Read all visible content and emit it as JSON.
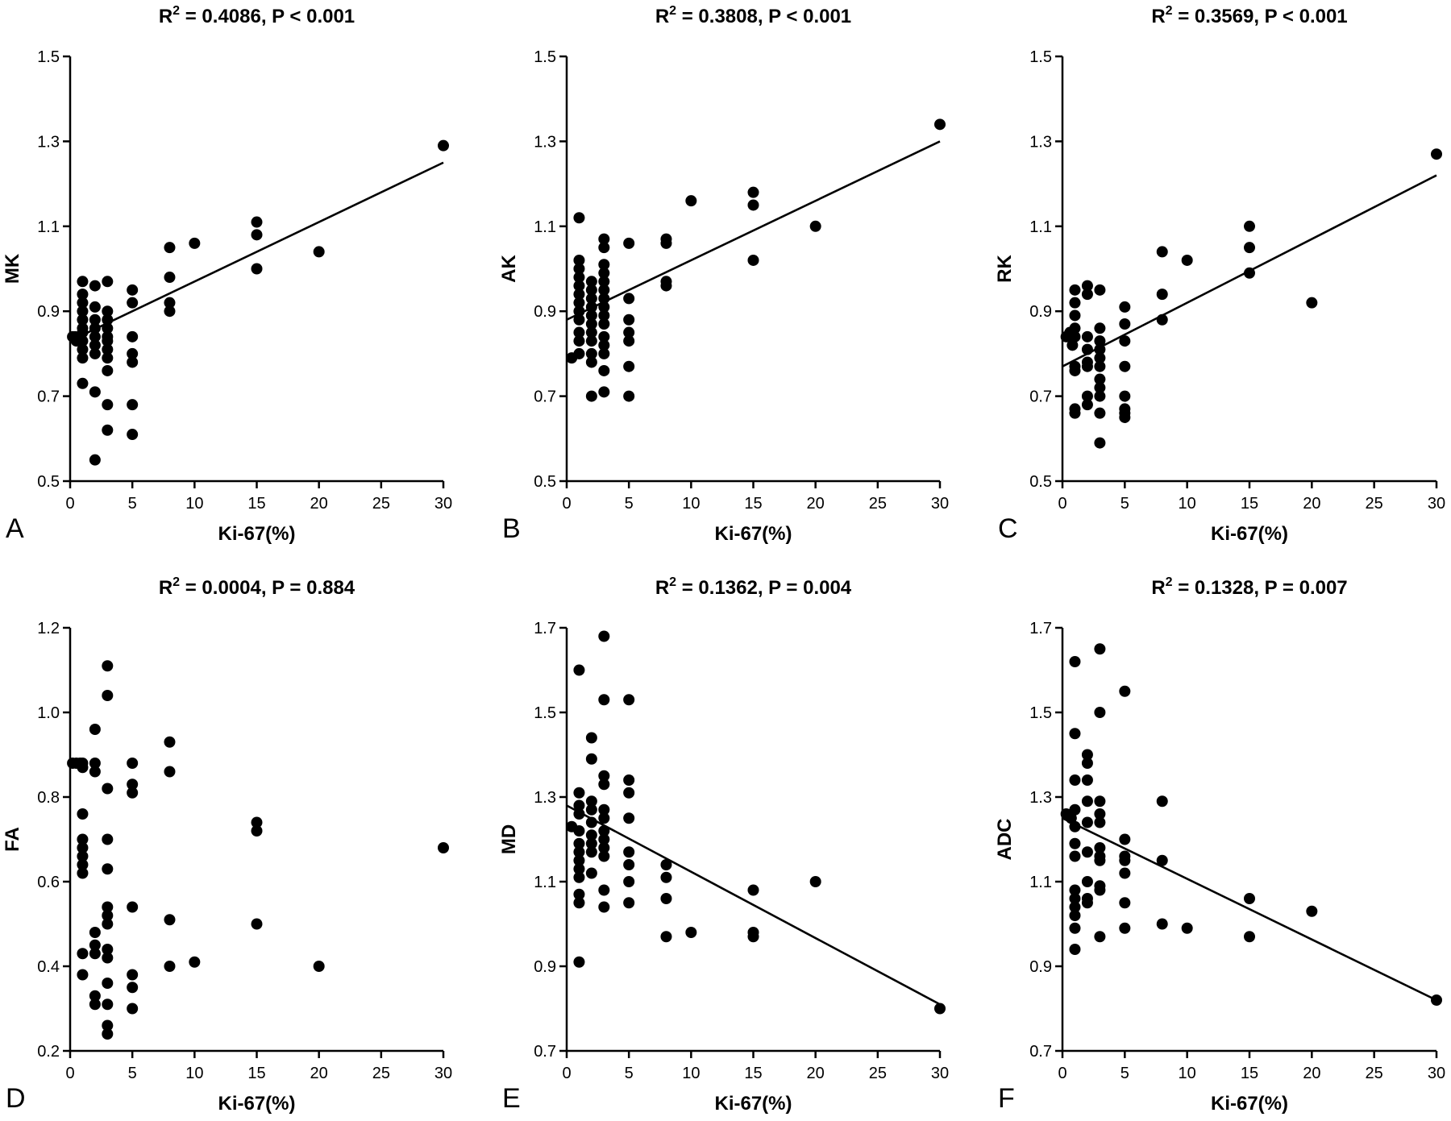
{
  "chart_data": [
    {
      "id": "A",
      "type": "scatter",
      "panel_label": "A",
      "title_pre": "R",
      "title_sup": "2",
      "title_post": " = 0.4086, P < 0.001",
      "xlabel": "Ki-67(%)",
      "ylabel": "MK",
      "xlim": [
        0,
        30
      ],
      "ylim": [
        0.5,
        1.5
      ],
      "xticks": [
        0,
        5,
        10,
        15,
        20,
        25,
        30
      ],
      "yticks": [
        0.5,
        0.7,
        0.9,
        1.1,
        1.3,
        1.5
      ],
      "ytick_labels": [
        "0.5",
        "0.7",
        "0.9",
        "1.1",
        "1.3",
        "1.5"
      ],
      "fit": [
        [
          0,
          0.83
        ],
        [
          30,
          1.25
        ]
      ],
      "points": [
        [
          0.2,
          0.84
        ],
        [
          0.4,
          0.84
        ],
        [
          0.5,
          0.83
        ],
        [
          0.8,
          0.84
        ],
        [
          1,
          0.97
        ],
        [
          1,
          0.94
        ],
        [
          1,
          0.92
        ],
        [
          1,
          0.9
        ],
        [
          1,
          0.88
        ],
        [
          1,
          0.86
        ],
        [
          1,
          0.85
        ],
        [
          1,
          0.83
        ],
        [
          1,
          0.81
        ],
        [
          1,
          0.79
        ],
        [
          1,
          0.73
        ],
        [
          2,
          0.96
        ],
        [
          2,
          0.91
        ],
        [
          2,
          0.88
        ],
        [
          2,
          0.86
        ],
        [
          2,
          0.84
        ],
        [
          2,
          0.82
        ],
        [
          2,
          0.8
        ],
        [
          2,
          0.71
        ],
        [
          2,
          0.55
        ],
        [
          3,
          0.97
        ],
        [
          3,
          0.9
        ],
        [
          3,
          0.88
        ],
        [
          3,
          0.86
        ],
        [
          3,
          0.84
        ],
        [
          3,
          0.83
        ],
        [
          3,
          0.81
        ],
        [
          3,
          0.79
        ],
        [
          3,
          0.76
        ],
        [
          3,
          0.68
        ],
        [
          3,
          0.62
        ],
        [
          5,
          0.95
        ],
        [
          5,
          0.92
        ],
        [
          5,
          0.84
        ],
        [
          5,
          0.8
        ],
        [
          5,
          0.78
        ],
        [
          5,
          0.68
        ],
        [
          5,
          0.61
        ],
        [
          8,
          1.05
        ],
        [
          8,
          0.98
        ],
        [
          8,
          0.92
        ],
        [
          8,
          0.9
        ],
        [
          10,
          1.06
        ],
        [
          15,
          1.11
        ],
        [
          15,
          1.08
        ],
        [
          15,
          1.0
        ],
        [
          20,
          1.04
        ],
        [
          30,
          1.29
        ]
      ]
    },
    {
      "id": "B",
      "type": "scatter",
      "panel_label": "B",
      "title_pre": "R",
      "title_sup": "2",
      "title_post": " = 0.3808, P < 0.001",
      "xlabel": "Ki-67(%)",
      "ylabel": "AK",
      "xlim": [
        0,
        30
      ],
      "ylim": [
        0.5,
        1.5
      ],
      "xticks": [
        0,
        5,
        10,
        15,
        20,
        25,
        30
      ],
      "yticks": [
        0.5,
        0.7,
        0.9,
        1.1,
        1.3,
        1.5
      ],
      "ytick_labels": [
        "0.5",
        "0.7",
        "0.9",
        "1.1",
        "1.3",
        "1.5"
      ],
      "fit": [
        [
          0,
          0.88
        ],
        [
          30,
          1.3
        ]
      ],
      "points": [
        [
          0.4,
          0.79
        ],
        [
          1,
          1.12
        ],
        [
          1,
          1.02
        ],
        [
          1,
          1.0
        ],
        [
          1,
          0.98
        ],
        [
          1,
          0.96
        ],
        [
          1,
          0.94
        ],
        [
          1,
          0.92
        ],
        [
          1,
          0.9
        ],
        [
          1,
          0.88
        ],
        [
          1,
          0.85
        ],
        [
          1,
          0.83
        ],
        [
          1,
          0.8
        ],
        [
          2,
          0.97
        ],
        [
          2,
          0.95
        ],
        [
          2,
          0.93
        ],
        [
          2,
          0.91
        ],
        [
          2,
          0.89
        ],
        [
          2,
          0.87
        ],
        [
          2,
          0.85
        ],
        [
          2,
          0.83
        ],
        [
          2,
          0.8
        ],
        [
          2,
          0.78
        ],
        [
          2,
          0.7
        ],
        [
          3,
          1.07
        ],
        [
          3,
          1.05
        ],
        [
          3,
          1.01
        ],
        [
          3,
          0.99
        ],
        [
          3,
          0.97
        ],
        [
          3,
          0.95
        ],
        [
          3,
          0.93
        ],
        [
          3,
          0.91
        ],
        [
          3,
          0.89
        ],
        [
          3,
          0.87
        ],
        [
          3,
          0.84
        ],
        [
          3,
          0.82
        ],
        [
          3,
          0.8
        ],
        [
          3,
          0.76
        ],
        [
          3,
          0.71
        ],
        [
          5,
          1.06
        ],
        [
          5,
          0.93
        ],
        [
          5,
          0.88
        ],
        [
          5,
          0.85
        ],
        [
          5,
          0.83
        ],
        [
          5,
          0.77
        ],
        [
          5,
          0.7
        ],
        [
          8,
          1.07
        ],
        [
          8,
          1.06
        ],
        [
          8,
          0.97
        ],
        [
          8,
          0.96
        ],
        [
          10,
          1.16
        ],
        [
          15,
          1.18
        ],
        [
          15,
          1.15
        ],
        [
          15,
          1.02
        ],
        [
          20,
          1.1
        ],
        [
          30,
          1.34
        ]
      ]
    },
    {
      "id": "C",
      "type": "scatter",
      "panel_label": "C",
      "title_pre": "R",
      "title_sup": "2",
      "title_post": " = 0.3569, P < 0.001",
      "xlabel": "Ki-67(%)",
      "ylabel": "RK",
      "xlim": [
        0,
        30
      ],
      "ylim": [
        0.5,
        1.5
      ],
      "xticks": [
        0,
        5,
        10,
        15,
        20,
        25,
        30
      ],
      "yticks": [
        0.5,
        0.7,
        0.9,
        1.1,
        1.3,
        1.5
      ],
      "ytick_labels": [
        "0.5",
        "0.7",
        "0.9",
        "1.1",
        "1.3",
        "1.5"
      ],
      "fit": [
        [
          0,
          0.77
        ],
        [
          30,
          1.22
        ]
      ],
      "points": [
        [
          0.3,
          0.84
        ],
        [
          0.6,
          0.85
        ],
        [
          0.8,
          0.82
        ],
        [
          1,
          0.95
        ],
        [
          1,
          0.92
        ],
        [
          1,
          0.89
        ],
        [
          1,
          0.86
        ],
        [
          1,
          0.84
        ],
        [
          1,
          0.77
        ],
        [
          1,
          0.76
        ],
        [
          1,
          0.67
        ],
        [
          1,
          0.66
        ],
        [
          2,
          0.96
        ],
        [
          2,
          0.94
        ],
        [
          2,
          0.84
        ],
        [
          2,
          0.81
        ],
        [
          2,
          0.78
        ],
        [
          2,
          0.77
        ],
        [
          2,
          0.7
        ],
        [
          2,
          0.68
        ],
        [
          3,
          0.95
        ],
        [
          3,
          0.86
        ],
        [
          3,
          0.83
        ],
        [
          3,
          0.81
        ],
        [
          3,
          0.79
        ],
        [
          3,
          0.77
        ],
        [
          3,
          0.74
        ],
        [
          3,
          0.72
        ],
        [
          3,
          0.7
        ],
        [
          3,
          0.66
        ],
        [
          3,
          0.59
        ],
        [
          5,
          0.91
        ],
        [
          5,
          0.87
        ],
        [
          5,
          0.83
        ],
        [
          5,
          0.77
        ],
        [
          5,
          0.7
        ],
        [
          5,
          0.67
        ],
        [
          5,
          0.66
        ],
        [
          5,
          0.65
        ],
        [
          8,
          1.04
        ],
        [
          8,
          0.94
        ],
        [
          8,
          0.88
        ],
        [
          10,
          1.02
        ],
        [
          15,
          1.1
        ],
        [
          15,
          1.05
        ],
        [
          15,
          0.99
        ],
        [
          20,
          0.92
        ],
        [
          30,
          1.27
        ]
      ]
    },
    {
      "id": "D",
      "type": "scatter",
      "panel_label": "D",
      "title_pre": "R",
      "title_sup": "2",
      "title_post": " = 0.0004, P = 0.884",
      "xlabel": "Ki-67(%)",
      "ylabel": "FA",
      "xlim": [
        0,
        30
      ],
      "ylim": [
        0.2,
        1.2
      ],
      "xticks": [
        0,
        5,
        10,
        15,
        20,
        25,
        30
      ],
      "yticks": [
        0.2,
        0.4,
        0.6,
        0.8,
        1.0,
        1.2
      ],
      "ytick_labels": [
        "0.2",
        "0.4",
        "0.6",
        "0.8",
        "1.0",
        "1.2"
      ],
      "fit": null,
      "points": [
        [
          0.2,
          0.88
        ],
        [
          0.5,
          0.88
        ],
        [
          0.8,
          0.88
        ],
        [
          1,
          0.88
        ],
        [
          1,
          0.87
        ],
        [
          1,
          0.76
        ],
        [
          1,
          0.7
        ],
        [
          1,
          0.68
        ],
        [
          1,
          0.66
        ],
        [
          1,
          0.64
        ],
        [
          1,
          0.62
        ],
        [
          1,
          0.43
        ],
        [
          1,
          0.38
        ],
        [
          2,
          0.96
        ],
        [
          2,
          0.88
        ],
        [
          2,
          0.86
        ],
        [
          2,
          0.48
        ],
        [
          2,
          0.45
        ],
        [
          2,
          0.43
        ],
        [
          2,
          0.33
        ],
        [
          2,
          0.31
        ],
        [
          3,
          1.11
        ],
        [
          3,
          1.04
        ],
        [
          3,
          0.82
        ],
        [
          3,
          0.7
        ],
        [
          3,
          0.63
        ],
        [
          3,
          0.54
        ],
        [
          3,
          0.52
        ],
        [
          3,
          0.5
        ],
        [
          3,
          0.44
        ],
        [
          3,
          0.42
        ],
        [
          3,
          0.36
        ],
        [
          3,
          0.31
        ],
        [
          3,
          0.26
        ],
        [
          3,
          0.24
        ],
        [
          5,
          0.88
        ],
        [
          5,
          0.83
        ],
        [
          5,
          0.81
        ],
        [
          5,
          0.54
        ],
        [
          5,
          0.38
        ],
        [
          5,
          0.35
        ],
        [
          5,
          0.3
        ],
        [
          8,
          0.93
        ],
        [
          8,
          0.86
        ],
        [
          8,
          0.51
        ],
        [
          8,
          0.4
        ],
        [
          10,
          0.41
        ],
        [
          15,
          0.74
        ],
        [
          15,
          0.72
        ],
        [
          15,
          0.5
        ],
        [
          20,
          0.4
        ],
        [
          30,
          0.68
        ]
      ]
    },
    {
      "id": "E",
      "type": "scatter",
      "panel_label": "E",
      "title_pre": "R",
      "title_sup": "2",
      "title_post": " = 0.1362, P = 0.004",
      "xlabel": "Ki-67(%)",
      "ylabel": "MD",
      "xlim": [
        0,
        30
      ],
      "ylim": [
        0.7,
        1.7
      ],
      "xticks": [
        0,
        5,
        10,
        15,
        20,
        25,
        30
      ],
      "yticks": [
        0.7,
        0.9,
        1.1,
        1.3,
        1.5,
        1.7
      ],
      "ytick_labels": [
        "0.7",
        "0.9",
        "1.1",
        "1.3",
        "1.5",
        "1.7"
      ],
      "fit": [
        [
          0,
          1.28
        ],
        [
          30,
          0.81
        ]
      ],
      "points": [
        [
          0.4,
          1.23
        ],
        [
          1,
          1.6
        ],
        [
          1,
          1.31
        ],
        [
          1,
          1.28
        ],
        [
          1,
          1.26
        ],
        [
          1,
          1.22
        ],
        [
          1,
          1.19
        ],
        [
          1,
          1.17
        ],
        [
          1,
          1.15
        ],
        [
          1,
          1.13
        ],
        [
          1,
          1.11
        ],
        [
          1,
          1.07
        ],
        [
          1,
          1.05
        ],
        [
          1,
          0.91
        ],
        [
          2,
          1.44
        ],
        [
          2,
          1.39
        ],
        [
          2,
          1.29
        ],
        [
          2,
          1.27
        ],
        [
          2,
          1.24
        ],
        [
          2,
          1.21
        ],
        [
          2,
          1.19
        ],
        [
          2,
          1.17
        ],
        [
          2,
          1.12
        ],
        [
          3,
          1.68
        ],
        [
          3,
          1.53
        ],
        [
          3,
          1.35
        ],
        [
          3,
          1.33
        ],
        [
          3,
          1.27
        ],
        [
          3,
          1.25
        ],
        [
          3,
          1.22
        ],
        [
          3,
          1.2
        ],
        [
          3,
          1.18
        ],
        [
          3,
          1.16
        ],
        [
          3,
          1.08
        ],
        [
          3,
          1.04
        ],
        [
          5,
          1.53
        ],
        [
          5,
          1.34
        ],
        [
          5,
          1.31
        ],
        [
          5,
          1.25
        ],
        [
          5,
          1.17
        ],
        [
          5,
          1.14
        ],
        [
          5,
          1.1
        ],
        [
          5,
          1.05
        ],
        [
          8,
          1.14
        ],
        [
          8,
          1.11
        ],
        [
          8,
          1.06
        ],
        [
          8,
          0.97
        ],
        [
          10,
          0.98
        ],
        [
          15,
          1.08
        ],
        [
          15,
          0.98
        ],
        [
          15,
          0.97
        ],
        [
          20,
          1.1
        ],
        [
          30,
          0.8
        ]
      ]
    },
    {
      "id": "F",
      "type": "scatter",
      "panel_label": "F",
      "title_pre": "R",
      "title_sup": "2",
      "title_post": " = 0.1328, P = 0.007",
      "xlabel": "Ki-67(%)",
      "ylabel": "ADC",
      "xlim": [
        0,
        30
      ],
      "ylim": [
        0.7,
        1.7
      ],
      "xticks": [
        0,
        5,
        10,
        15,
        20,
        25,
        30
      ],
      "yticks": [
        0.7,
        0.9,
        1.1,
        1.3,
        1.5,
        1.7
      ],
      "ytick_labels": [
        "0.7",
        "0.9",
        "1.1",
        "1.3",
        "1.5",
        "1.7"
      ],
      "fit": [
        [
          0,
          1.25
        ],
        [
          30,
          0.82
        ]
      ],
      "points": [
        [
          0.3,
          1.26
        ],
        [
          0.7,
          1.25
        ],
        [
          1,
          1.62
        ],
        [
          1,
          1.45
        ],
        [
          1,
          1.34
        ],
        [
          1,
          1.27
        ],
        [
          1,
          1.23
        ],
        [
          1,
          1.19
        ],
        [
          1,
          1.16
        ],
        [
          1,
          1.08
        ],
        [
          1,
          1.06
        ],
        [
          1,
          1.04
        ],
        [
          1,
          1.02
        ],
        [
          1,
          0.99
        ],
        [
          1,
          0.94
        ],
        [
          2,
          1.4
        ],
        [
          2,
          1.38
        ],
        [
          2,
          1.34
        ],
        [
          2,
          1.29
        ],
        [
          2,
          1.24
        ],
        [
          2,
          1.17
        ],
        [
          2,
          1.1
        ],
        [
          2,
          1.06
        ],
        [
          2,
          1.05
        ],
        [
          3,
          1.65
        ],
        [
          3,
          1.5
        ],
        [
          3,
          1.29
        ],
        [
          3,
          1.26
        ],
        [
          3,
          1.24
        ],
        [
          3,
          1.18
        ],
        [
          3,
          1.16
        ],
        [
          3,
          1.15
        ],
        [
          3,
          1.09
        ],
        [
          3,
          1.08
        ],
        [
          3,
          0.97
        ],
        [
          5,
          1.55
        ],
        [
          5,
          1.2
        ],
        [
          5,
          1.16
        ],
        [
          5,
          1.15
        ],
        [
          5,
          1.12
        ],
        [
          5,
          1.05
        ],
        [
          5,
          0.99
        ],
        [
          8,
          1.29
        ],
        [
          8,
          1.15
        ],
        [
          8,
          1.0
        ],
        [
          10,
          0.99
        ],
        [
          15,
          1.06
        ],
        [
          15,
          0.97
        ],
        [
          20,
          1.03
        ],
        [
          30,
          0.82
        ]
      ]
    }
  ]
}
